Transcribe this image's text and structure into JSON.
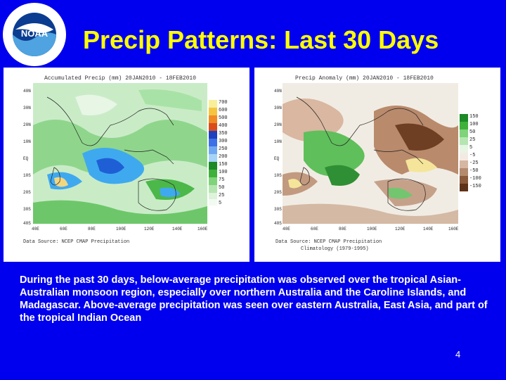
{
  "slide": {
    "title": "Precip Patterns: Last 30 Days",
    "description": "During the past 30 days, below-average precipitation was observed over the tropical Asian-Australian monsoon region, especially over northern Australia and the Caroline Islands, and Madagascar. Above-average precipitation was seen over eastern Australia, East Asia, and part of the tropical Indian Ocean",
    "page_number": "4"
  },
  "logo": {
    "icon": "noaa-seal-icon",
    "text": "NOAA"
  },
  "colors": {
    "background": "#0000ee",
    "title": "#ffff00",
    "text": "#ffffff"
  },
  "maps": {
    "lat_ticks": [
      "40N",
      "30N",
      "20N",
      "10N",
      "EQ",
      "10S",
      "20S",
      "30S",
      "40S"
    ],
    "lon_ticks": [
      "40E",
      "60E",
      "80E",
      "100E",
      "120E",
      "140E",
      "160E"
    ],
    "left": {
      "header": "Accumulated Precip (mm) 20JAN2010 - 18FEB2010",
      "colorbar_labels": [
        "700",
        "600",
        "500",
        "400",
        "350",
        "300",
        "250",
        "200",
        "150",
        "100",
        "75",
        "50",
        "25",
        "5"
      ],
      "source": "Data Source: NCEP CMAP Precipitation"
    },
    "right": {
      "header": "Precip Anomaly (mm) 20JAN2010 - 18FEB2010",
      "colorbar_labels": [
        "150",
        "100",
        "50",
        "25",
        "5",
        "-5",
        "-25",
        "-50",
        "-100",
        "-150"
      ],
      "source": "Data Source: NCEP CMAP Precipitation",
      "source2": "Climatology (1979-1995)"
    }
  }
}
